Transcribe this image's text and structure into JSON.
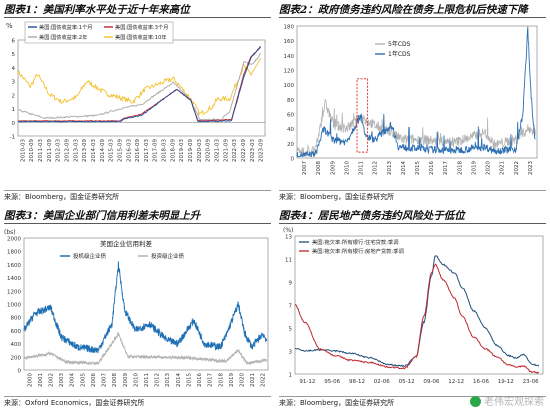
{
  "charts": [
    {
      "title": "图表1：美国利率水平处于近十年来高位",
      "source": "来源：Bloomberg，国金证券研究所",
      "ylabel": "%",
      "yticks": [
        "-1",
        "0",
        "1",
        "2",
        "3",
        "4",
        "5",
        "6"
      ],
      "xticks": [
        "2010-03",
        "2010-09",
        "2011-03",
        "2011-09",
        "2012-03",
        "2012-09",
        "2013-03",
        "2013-09",
        "2014-03",
        "2014-09",
        "2015-03",
        "2015-09",
        "2016-03",
        "2016-09",
        "2017-03",
        "2017-09",
        "2018-03",
        "2018-09",
        "2019-03",
        "2019-09",
        "2020-03",
        "2020-09",
        "2021-03",
        "2021-09",
        "2022-03",
        "2022-09",
        "2023-03",
        "2023-09"
      ],
      "legend": [
        "美国:国债收益率:1个月",
        "美国:国债收益率:3个月",
        "美国:国债收益率:2年",
        "美国:国债收益率:10年"
      ],
      "colors": [
        "#1f4e9a",
        "#c0282d",
        "#a8a8a8",
        "#f2c12e"
      ]
    },
    {
      "title": "图表2：政府债务违约风险在债务上限危机后快速下降",
      "source": "来源：Bloomberg，国金证券研究所",
      "yticks": [
        "0",
        "20",
        "40",
        "60",
        "80",
        "100",
        "120",
        "140",
        "160",
        "180"
      ],
      "xticks": [
        "2007",
        "2008",
        "2009",
        "2010",
        "2011",
        "2012",
        "2013",
        "2014",
        "2015",
        "2016",
        "2017",
        "2018",
        "2019",
        "2020",
        "2021",
        "2022",
        "2023"
      ],
      "legend": [
        "5年CDS",
        "1年CDS"
      ],
      "colors": [
        "#b3b3b3",
        "#2e6fb3"
      ],
      "highlight_color": "#d62728"
    },
    {
      "title": "图表3：美国企业部门信用利差未明显上升",
      "source": "来源：Oxford Economics，国金证券研究所",
      "ylabel": "(bs)",
      "yticks": [
        "0",
        "200",
        "400",
        "600",
        "800",
        "1000",
        "1200",
        "1400",
        "1600",
        "1800",
        "2000"
      ],
      "xticks": [
        "2000",
        "2001",
        "2002",
        "2003",
        "2004",
        "2005",
        "2006",
        "2007",
        "2008",
        "2009",
        "2010",
        "2011",
        "2012",
        "2013",
        "2014",
        "2015",
        "2016",
        "2017",
        "2018",
        "2019",
        "2020",
        "2021",
        "2022"
      ],
      "inner_title": "美国企业信用利差",
      "legend": [
        "投机级企业债",
        "投资级企业债"
      ],
      "colors": [
        "#1f6fb5",
        "#b3b3b3"
      ]
    },
    {
      "title": "图表4：居民地产债务违约风险处于低位",
      "source": "来源：Bloomberg，国金证券研究所",
      "ylabel": "(%)",
      "yticks": [
        "1",
        "3",
        "5",
        "7",
        "9",
        "11",
        "13"
      ],
      "xticks": [
        "91-12",
        "95-06",
        "98-12",
        "02-06",
        "05-12",
        "09-06",
        "12-12",
        "16-06",
        "19-12",
        "23-06"
      ],
      "legend": [
        "美国:拖欠率:所有银行:住宅贷款:季调",
        "美国:拖欠率:所有银行:房地产贷款:季调"
      ],
      "colors": [
        "#1f4e79",
        "#c0282d"
      ]
    }
  ],
  "watermark": "老伟宏观探索"
}
